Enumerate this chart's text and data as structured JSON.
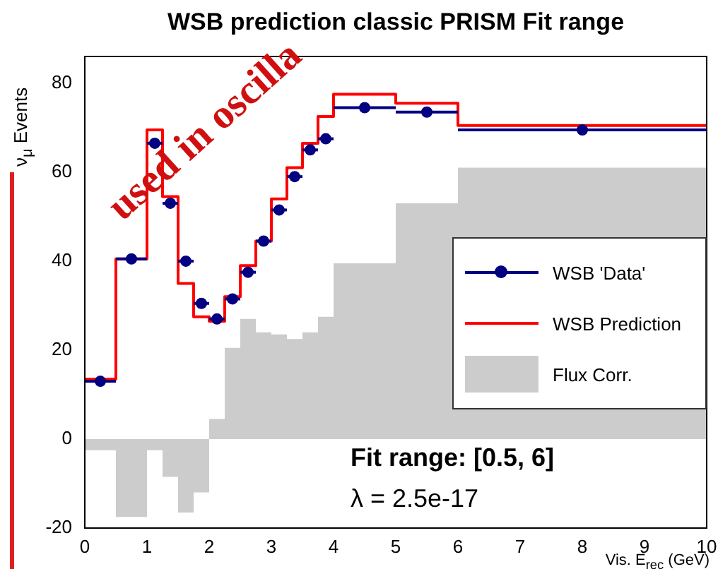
{
  "chart_data": {
    "type": "step",
    "title": "WSB prediction classic PRISM Fit range",
    "xlabel": "Vis. E$_{rec}$ (GeV)",
    "ylabel": "ν$_{μ}$ Events",
    "bins": [
      0,
      0.5,
      1,
      1.25,
      1.5,
      1.75,
      2,
      2.25,
      2.5,
      2.75,
      3,
      3.25,
      3.5,
      3.75,
      4,
      5,
      6,
      10
    ],
    "series": [
      {
        "name": "Flux Corr.",
        "type": "histogram",
        "color": "#cccccc",
        "values": [
          -2.5,
          -17.5,
          -2.5,
          -8.5,
          -16.5,
          -12,
          4.5,
          20.5,
          27,
          24,
          23.5,
          22.5,
          24,
          27.5,
          39.5,
          53,
          61
        ]
      },
      {
        "name": "WSB Prediction",
        "type": "step",
        "color": "#ff0000",
        "x": [
          0,
          0.5,
          1,
          1.25,
          1.5,
          1.75,
          2,
          2.25,
          2.5,
          2.75,
          3,
          3.25,
          3.5,
          3.75,
          4,
          5,
          6,
          10
        ],
        "values": [
          13.5,
          40.5,
          69.5,
          54.5,
          35,
          27.5,
          26.5,
          32,
          39,
          44.5,
          54,
          61,
          66.5,
          72.5,
          77.5,
          75.5,
          70.5,
          70.5
        ]
      },
      {
        "name": "WSB 'Data'",
        "type": "scatter",
        "color": "#000080",
        "x": [
          0.25,
          0.75,
          1.125,
          1.375,
          1.625,
          1.875,
          2.125,
          2.375,
          2.625,
          2.875,
          3.125,
          3.375,
          3.625,
          3.875,
          4.5,
          5.5,
          8
        ],
        "marker": "circle",
        "values": [
          13,
          40.5,
          66.5,
          53,
          40,
          30.5,
          27,
          31.5,
          37.5,
          44.5,
          51.5,
          59,
          65,
          67.5,
          74.5,
          73.5,
          69.5
        ],
        "xerrors": [
          0.25,
          0.25,
          0.125,
          0.125,
          0.125,
          0.125,
          0.125,
          0.125,
          0.125,
          0.125,
          0.125,
          0.125,
          0.125,
          0.125,
          0.5,
          0.5,
          2
        ]
      }
    ],
    "xlim": [
      0,
      10
    ],
    "xticks": [
      0,
      1,
      2,
      3,
      4,
      5,
      6,
      7,
      8,
      9,
      10
    ],
    "ylim": [
      -20,
      86
    ],
    "yticks": [
      -20,
      0,
      20,
      40,
      60,
      80
    ],
    "grid": false,
    "legend": "right",
    "annotations": [
      "Fit range: [0.5, 6]",
      "λ = 2.5e-17",
      "used in oscilla"
    ]
  }
}
